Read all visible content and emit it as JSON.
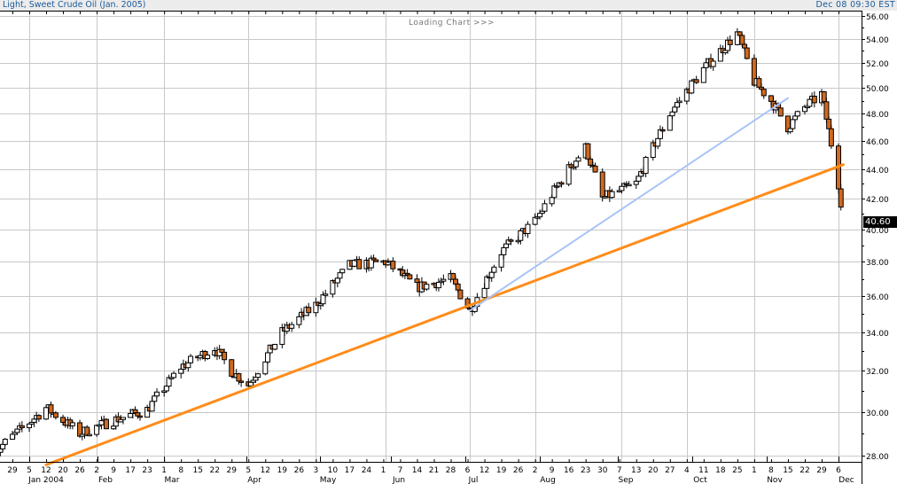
{
  "header": {
    "title": "Light, Sweet Crude Oil (Jan. 2005)",
    "timestamp": "Dec 08 09:30 EST"
  },
  "status": {
    "loading": "Loading Chart >>>"
  },
  "price_tag": "40.60",
  "colors": {
    "down_candle": "#d2691e",
    "up_candle": "#ffffff",
    "trendline_primary": "#ff8c1a",
    "trendline_secondary": "#a8c4f8",
    "grid": "#c8c8c8",
    "title_text": "#1c5a99"
  },
  "chart_data": {
    "type": "candlestick",
    "title": "Light, Sweet Crude Oil (Jan. 2005)",
    "xlabel": "",
    "ylabel": "",
    "y_scale": "log",
    "ylim": [
      27.5,
      56.2
    ],
    "y_ticks": [
      "56.00",
      "54.00",
      "52.00",
      "50.00",
      "48.00",
      "46.00",
      "44.00",
      "42.00",
      "40.00",
      "38.00",
      "36.00",
      "34.00",
      "32.00",
      "30.00",
      "28.00"
    ],
    "x_day_ticks": [
      "22",
      "29",
      "5",
      "12",
      "20",
      "26",
      "2",
      "9",
      "17",
      "23",
      "1",
      "8",
      "15",
      "22",
      "29",
      "5",
      "12",
      "19",
      "26",
      "3",
      "10",
      "17",
      "24",
      "1",
      "7",
      "14",
      "21",
      "28",
      "6",
      "12",
      "19",
      "26",
      "2",
      "9",
      "16",
      "23",
      "30",
      "7",
      "13",
      "20",
      "27",
      "4",
      "11",
      "18",
      "25",
      "1",
      "8",
      "15",
      "22",
      "29",
      "6"
    ],
    "x_month_labels": [
      "Jan 2004",
      "Feb",
      "Mar",
      "Apr",
      "May",
      "Jun",
      "Jul",
      "Aug",
      "Sep",
      "Oct",
      "Nov",
      "Dec"
    ],
    "last_price": 40.6,
    "grid": true,
    "approx_weekly_closes": [
      {
        "date": "2003-12-22",
        "close": 28.2
      },
      {
        "date": "2004-01-05",
        "close": 29.5
      },
      {
        "date": "2004-01-12",
        "close": 30.2
      },
      {
        "date": "2004-01-26",
        "close": 29.0
      },
      {
        "date": "2004-02-09",
        "close": 29.6
      },
      {
        "date": "2004-02-23",
        "close": 30.1
      },
      {
        "date": "2004-03-08",
        "close": 32.2
      },
      {
        "date": "2004-03-22",
        "close": 33.2
      },
      {
        "date": "2004-03-29",
        "close": 32.0
      },
      {
        "date": "2004-04-05",
        "close": 31.3
      },
      {
        "date": "2004-04-19",
        "close": 34.0
      },
      {
        "date": "2004-05-03",
        "close": 35.5
      },
      {
        "date": "2004-05-17",
        "close": 37.8
      },
      {
        "date": "2004-06-01",
        "close": 38.0
      },
      {
        "date": "2004-06-14",
        "close": 36.5
      },
      {
        "date": "2004-06-28",
        "close": 37.0
      },
      {
        "date": "2004-07-06",
        "close": 35.2
      },
      {
        "date": "2004-07-19",
        "close": 38.6
      },
      {
        "date": "2004-08-02",
        "close": 40.5
      },
      {
        "date": "2004-08-16",
        "close": 44.0
      },
      {
        "date": "2004-08-23",
        "close": 45.5
      },
      {
        "date": "2004-08-30",
        "close": 42.0
      },
      {
        "date": "2004-09-13",
        "close": 43.0
      },
      {
        "date": "2004-09-27",
        "close": 48.0
      },
      {
        "date": "2004-10-11",
        "close": 51.5
      },
      {
        "date": "2004-10-25",
        "close": 54.5
      },
      {
        "date": "2004-11-01",
        "close": 50.5
      },
      {
        "date": "2004-11-08",
        "close": 49.0
      },
      {
        "date": "2004-11-15",
        "close": 47.0
      },
      {
        "date": "2004-11-22",
        "close": 48.5
      },
      {
        "date": "2004-11-29",
        "close": 49.5
      },
      {
        "date": "2004-12-06",
        "close": 43.0
      },
      {
        "date": "2004-12-08",
        "close": 40.6
      }
    ],
    "annotations": [
      {
        "type": "trendline",
        "color": "#ff8c1a",
        "from": {
          "date": "2004-01-12",
          "price": 27.6
        },
        "to": {
          "date": "2004-12-08",
          "price": 44.3
        }
      },
      {
        "type": "trendline",
        "color": "#a8c4f8",
        "from": {
          "date": "2004-07-06",
          "price": 35.2
        },
        "to": {
          "date": "2004-11-15",
          "price": 49.2
        }
      }
    ]
  }
}
